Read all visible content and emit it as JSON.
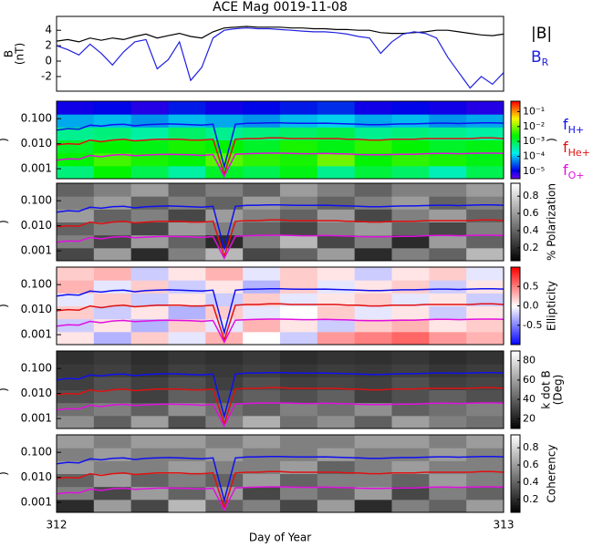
{
  "chart_data": [
    {
      "type": "line",
      "title": "ACE Mag 0019-11-08",
      "ylabel": [
        "B",
        "(nT)"
      ],
      "x": [
        312,
        312.025,
        312.05,
        312.075,
        312.1,
        312.125,
        312.15,
        312.175,
        312.2,
        312.225,
        312.25,
        312.275,
        312.3,
        312.325,
        312.35,
        312.375,
        312.4,
        312.425,
        312.45,
        312.475,
        312.5,
        312.525,
        312.55,
        312.575,
        312.6,
        312.625,
        312.65,
        312.675,
        312.7,
        312.725,
        312.75,
        312.775,
        312.8,
        312.825,
        312.85,
        312.875,
        312.9,
        312.925,
        312.95,
        312.975,
        313
      ],
      "xlim": [
        312,
        313
      ],
      "ylim": [
        -3.9,
        5.8
      ],
      "yticks": [
        -2,
        0,
        2,
        4
      ],
      "series": [
        {
          "name": "|B|",
          "color": "#000000",
          "values": [
            2.6,
            2.8,
            2.5,
            3.0,
            2.7,
            3.0,
            2.8,
            3.2,
            3.5,
            3.0,
            3.3,
            3.6,
            3.2,
            3.0,
            3.8,
            4.3,
            4.4,
            4.5,
            4.4,
            4.4,
            4.4,
            4.3,
            4.3,
            4.2,
            4.2,
            4.1,
            4.1,
            4.0,
            4.0,
            3.7,
            3.6,
            3.6,
            3.7,
            3.8,
            4.0,
            4.0,
            3.8,
            3.6,
            3.4,
            3.3,
            3.5
          ]
        },
        {
          "name": {
            "base": "B",
            "sub": "R"
          },
          "color": "#2020e0",
          "values": [
            2.0,
            1.5,
            0.8,
            2.2,
            1.0,
            -0.5,
            1.2,
            2.5,
            2.8,
            -1.0,
            0.2,
            2.5,
            -2.5,
            -0.8,
            3.0,
            4.0,
            4.2,
            4.3,
            4.2,
            4.2,
            4.1,
            4.0,
            3.9,
            3.8,
            3.8,
            3.7,
            3.5,
            3.2,
            3.0,
            1.0,
            2.5,
            3.5,
            3.8,
            3.6,
            3.0,
            0.5,
            -1.5,
            -3.5,
            -2.0,
            -3.0,
            -1.5
          ]
        }
      ]
    },
    {
      "type": "heatmap",
      "ylabel": ")",
      "zlabel": ")",
      "colormap": "rainbow",
      "log_y": true,
      "xlim": [
        312,
        313
      ],
      "ylim": [
        0.0004,
        0.5
      ],
      "yticks": [
        0.001,
        {
          "value": 0.01,
          "label": "0.010"
        },
        {
          "value": 0.1,
          "label": "0.100"
        }
      ],
      "zlim": [
        -5.5,
        -0.3
      ],
      "zticks": [
        {
          "value": -5,
          "label": "10⁻⁵"
        },
        {
          "value": -4,
          "label": "10⁻⁴"
        },
        {
          "value": -3,
          "label": "10⁻³"
        },
        {
          "value": -2,
          "label": "10⁻²"
        },
        {
          "value": -1,
          "label": "10⁻¹"
        }
      ],
      "z": [
        [
          -3.2,
          -2.6,
          -3.0,
          -3.4,
          -2.8,
          -3.0,
          -2.7,
          -3.3,
          -2.9,
          -3.1,
          -3.5,
          -3.0
        ],
        [
          -2.6,
          -2.3,
          -2.5,
          -2.6,
          -2.2,
          -2.4,
          -2.5,
          -2.1,
          -2.6,
          -2.4,
          -2.5,
          -2.7
        ],
        [
          -2.8,
          -2.6,
          -2.7,
          -2.5,
          -2.6,
          -2.8,
          -2.5,
          -2.7,
          -2.4,
          -2.6,
          -2.8,
          -2.7
        ],
        [
          -3.3,
          -3.2,
          -3.4,
          -3.1,
          -3.3,
          -3.2,
          -3.1,
          -3.0,
          -3.3,
          -3.2,
          -3.3,
          -3.4
        ],
        [
          -4.1,
          -4.0,
          -4.2,
          -4.0,
          -4.1,
          -4.2,
          -4.0,
          -3.9,
          -4.1,
          -4.0,
          -4.2,
          -4.1
        ],
        [
          -5.0,
          -4.9,
          -5.1,
          -4.8,
          -5.0,
          -4.9,
          -4.8,
          -4.7,
          -5.0,
          -4.9,
          -5.0,
          -5.1
        ]
      ],
      "x": [
        312,
        312.025,
        312.05,
        312.075,
        312.1,
        312.125,
        312.15,
        312.175,
        312.2,
        312.225,
        312.25,
        312.275,
        312.3,
        312.325,
        312.35,
        312.375,
        312.4,
        312.425,
        312.45,
        312.475,
        312.5,
        312.525,
        312.55,
        312.575,
        312.6,
        312.625,
        312.65,
        312.675,
        312.7,
        312.725,
        312.75,
        312.775,
        312.8,
        312.825,
        312.85,
        312.875,
        312.9,
        312.925,
        312.95,
        312.975,
        313
      ],
      "series": [
        {
          "name": {
            "base": "f",
            "sub": "H+"
          },
          "color": "#1010f0",
          "values": [
            0.035,
            0.04,
            0.038,
            0.055,
            0.05,
            0.058,
            0.06,
            0.052,
            0.058,
            0.06,
            0.062,
            0.06,
            0.058,
            0.055,
            0.06,
            0.0012,
            0.06,
            0.065,
            0.066,
            0.068,
            0.068,
            0.066,
            0.065,
            0.065,
            0.066,
            0.064,
            0.062,
            0.06,
            0.058,
            0.058,
            0.06,
            0.062,
            0.062,
            0.064,
            0.066,
            0.066,
            0.064,
            0.066,
            0.068,
            0.068,
            0.066
          ]
        },
        {
          "name": {
            "base": "f",
            "sub": "He+"
          },
          "color": "#e01010",
          "values": [
            0.009,
            0.01,
            0.0095,
            0.014,
            0.012,
            0.014,
            0.015,
            0.013,
            0.014,
            0.015,
            0.015,
            0.015,
            0.014,
            0.014,
            0.015,
            0.0006,
            0.015,
            0.016,
            0.016,
            0.017,
            0.017,
            0.016,
            0.016,
            0.016,
            0.016,
            0.016,
            0.015,
            0.015,
            0.014,
            0.014,
            0.015,
            0.015,
            0.015,
            0.016,
            0.016,
            0.016,
            0.016,
            0.016,
            0.017,
            0.017,
            0.016
          ]
        },
        {
          "name": {
            "base": "f",
            "sub": "O+"
          },
          "color": "#e010e0",
          "values": [
            0.0022,
            0.0025,
            0.0024,
            0.0034,
            0.003,
            0.0035,
            0.0037,
            0.0033,
            0.0035,
            0.0037,
            0.0038,
            0.0037,
            0.0036,
            0.0034,
            0.0037,
            0.0005,
            0.0038,
            0.004,
            0.0041,
            0.0042,
            0.0042,
            0.0041,
            0.004,
            0.004,
            0.0041,
            0.004,
            0.0039,
            0.0037,
            0.0036,
            0.0036,
            0.0037,
            0.0038,
            0.0038,
            0.004,
            0.0041,
            0.0041,
            0.004,
            0.0041,
            0.0042,
            0.0042,
            0.0041
          ]
        }
      ]
    },
    {
      "type": "heatmap",
      "ylabel": ")",
      "zlabel": "% Polarization",
      "colormap": "gray",
      "log_y": true,
      "xlim": [
        312,
        313
      ],
      "ylim": [
        0.0004,
        0.5
      ],
      "yticks": [
        0.001,
        {
          "value": 0.01,
          "label": "0.010"
        },
        {
          "value": 0.1,
          "label": "0.100"
        }
      ],
      "zlim": [
        0.05,
        0.95
      ],
      "zticks": [
        0.2,
        0.4,
        0.6,
        0.8
      ],
      "z": [
        [
          0.3,
          0.6,
          0.2,
          0.5,
          0.7,
          0.3,
          0.4,
          0.6,
          0.2,
          0.5,
          0.4,
          0.7
        ],
        [
          0.5,
          0.3,
          0.6,
          0.4,
          0.2,
          0.5,
          0.7,
          0.3,
          0.5,
          0.2,
          0.6,
          0.4
        ],
        [
          0.4,
          0.5,
          0.3,
          0.6,
          0.5,
          0.4,
          0.3,
          0.5,
          0.6,
          0.4,
          0.3,
          0.5
        ],
        [
          0.6,
          0.4,
          0.5,
          0.3,
          0.6,
          0.5,
          0.4,
          0.6,
          0.3,
          0.5,
          0.6,
          0.4
        ],
        [
          0.5,
          0.6,
          0.4,
          0.5,
          0.4,
          0.6,
          0.5,
          0.4,
          0.5,
          0.6,
          0.4,
          0.5
        ],
        [
          0.4,
          0.5,
          0.6,
          0.4,
          0.5,
          0.4,
          0.6,
          0.5,
          0.4,
          0.5,
          0.5,
          0.6
        ]
      ]
    },
    {
      "type": "heatmap",
      "ylabel": ")",
      "zlabel": "Ellipticity",
      "colormap": "bwr",
      "log_y": true,
      "xlim": [
        312,
        313
      ],
      "ylim": [
        0.0004,
        0.5
      ],
      "yticks": [
        0.001,
        {
          "value": 0.01,
          "label": "0.010"
        },
        {
          "value": 0.1,
          "label": "0.100"
        }
      ],
      "zlim": [
        -1,
        1
      ],
      "zticks": [
        -0.5,
        {
          "value": 0,
          "label": "0.0"
        },
        0.5
      ],
      "z": [
        [
          0.1,
          -0.3,
          0.2,
          -0.1,
          0.3,
          0.0,
          -0.2,
          0.4,
          0.5,
          0.6,
          0.4,
          0.3
        ],
        [
          -0.2,
          0.1,
          -0.3,
          0.2,
          -0.1,
          0.3,
          0.1,
          -0.2,
          0.2,
          0.3,
          0.1,
          0.2
        ],
        [
          0.2,
          -0.2,
          0.1,
          -0.3,
          0.2,
          -0.1,
          0.0,
          0.2,
          -0.1,
          0.1,
          -0.2,
          0.1
        ],
        [
          -0.1,
          0.2,
          -0.2,
          0.1,
          -0.2,
          0.2,
          -0.1,
          0.1,
          0.2,
          -0.1,
          0.1,
          -0.2
        ],
        [
          0.3,
          -0.1,
          0.2,
          -0.2,
          0.1,
          -0.3,
          0.2,
          -0.1,
          0.1,
          0.2,
          -0.2,
          0.1
        ],
        [
          0.2,
          0.3,
          -0.2,
          0.1,
          0.3,
          -0.1,
          0.2,
          0.1,
          -0.2,
          0.1,
          0.2,
          -0.1
        ]
      ]
    },
    {
      "type": "heatmap",
      "ylabel": ")",
      "zlabel": [
        "k dot B",
        "(Deg)"
      ],
      "colormap": "gray",
      "log_y": true,
      "xlim": [
        312,
        313
      ],
      "ylim": [
        0.0004,
        0.5
      ],
      "yticks": [
        0.001,
        {
          "value": 0.01,
          "label": "0.010"
        },
        {
          "value": 0.1,
          "label": "0.100"
        }
      ],
      "zlim": [
        10,
        90
      ],
      "zticks": [
        20,
        40,
        60,
        80
      ],
      "z": [
        [
          55,
          40,
          60,
          35,
          50,
          65,
          45,
          55,
          40,
          60,
          50,
          45
        ],
        [
          45,
          50,
          40,
          55,
          45,
          40,
          50,
          45,
          55,
          40,
          45,
          50
        ],
        [
          35,
          40,
          30,
          40,
          35,
          40,
          35,
          40,
          30,
          35,
          40,
          35
        ],
        [
          30,
          35,
          30,
          35,
          30,
          35,
          30,
          32,
          30,
          35,
          30,
          32
        ],
        [
          28,
          30,
          26,
          30,
          28,
          30,
          27,
          29,
          28,
          30,
          27,
          29
        ],
        [
          25,
          28,
          24,
          27,
          25,
          28,
          24,
          26,
          25,
          27,
          24,
          26
        ]
      ]
    },
    {
      "type": "heatmap",
      "ylabel": ")",
      "zlabel": "Coherency",
      "colormap": "gray",
      "log_y": true,
      "xlim": [
        312,
        313
      ],
      "ylim": [
        0.0004,
        0.5
      ],
      "yticks": [
        0.001,
        {
          "value": 0.01,
          "label": "0.010"
        },
        {
          "value": 0.1,
          "label": "0.100"
        }
      ],
      "xticks": [
        312,
        313
      ],
      "xlabel": "Day of Year",
      "zlim": [
        0.05,
        0.95
      ],
      "zticks": [
        0.2,
        0.4,
        0.6,
        0.8
      ],
      "z": [
        [
          0.2,
          0.6,
          0.3,
          0.7,
          0.4,
          0.5,
          0.3,
          0.6,
          0.2,
          0.5,
          0.4,
          0.6
        ],
        [
          0.5,
          0.3,
          0.6,
          0.4,
          0.6,
          0.3,
          0.5,
          0.4,
          0.6,
          0.3,
          0.5,
          0.4
        ],
        [
          0.4,
          0.6,
          0.4,
          0.5,
          0.4,
          0.6,
          0.4,
          0.5,
          0.5,
          0.4,
          0.6,
          0.5
        ],
        [
          0.6,
          0.5,
          0.5,
          0.6,
          0.5,
          0.5,
          0.6,
          0.4,
          0.5,
          0.6,
          0.5,
          0.5
        ],
        [
          0.5,
          0.6,
          0.5,
          0.5,
          0.6,
          0.5,
          0.5,
          0.6,
          0.5,
          0.5,
          0.6,
          0.5
        ],
        [
          0.6,
          0.5,
          0.6,
          0.6,
          0.5,
          0.6,
          0.5,
          0.5,
          0.6,
          0.6,
          0.5,
          0.6
        ]
      ]
    }
  ]
}
